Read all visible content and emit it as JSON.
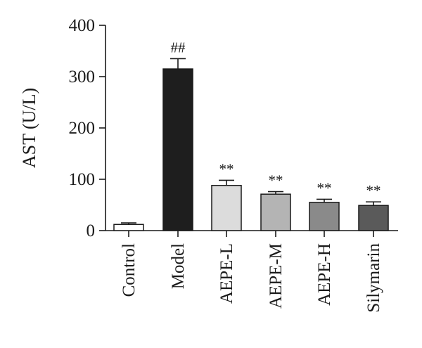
{
  "chart_data": {
    "type": "bar",
    "ylabel": "AST (U/L)",
    "ylim": [
      0,
      400
    ],
    "yticks": [
      0,
      100,
      200,
      300,
      400
    ],
    "grid": false,
    "legend": "none",
    "categories": [
      "Control",
      "Model",
      "AEPE-L",
      "AEPE-M",
      "AEPE-H",
      "Silymarin"
    ],
    "values": [
      12,
      315,
      88,
      71,
      55,
      49
    ],
    "errors": [
      3,
      20,
      10,
      5,
      6,
      7
    ],
    "annotations": [
      "",
      "##",
      "**",
      "**",
      "**",
      "**"
    ],
    "colors": [
      "#ffffff",
      "#1e1e1e",
      "#dcdcdc",
      "#b4b4b4",
      "#8a8a8a",
      "#5a5a5a"
    ]
  }
}
